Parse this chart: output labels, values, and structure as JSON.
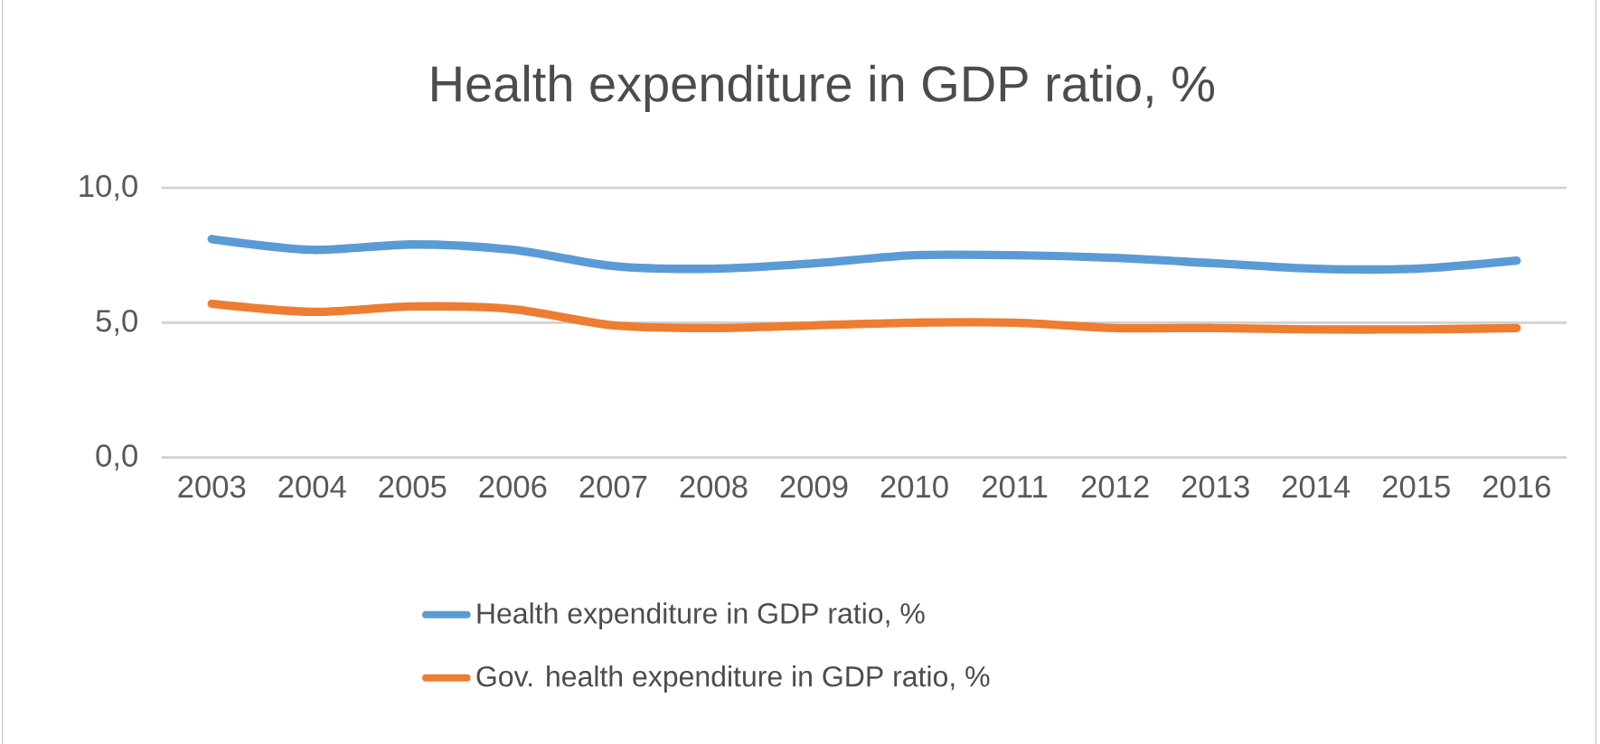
{
  "chart_data": {
    "type": "line",
    "title": "Health expenditure in GDP ratio, %",
    "categories": [
      "2003",
      "2004",
      "2005",
      "2006",
      "2007",
      "2008",
      "2009",
      "2010",
      "2011",
      "2012",
      "2013",
      "2014",
      "2015",
      "2016"
    ],
    "series": [
      {
        "name": "Health expenditure in GDP ratio, %",
        "color": "#5b9bd5",
        "values": [
          8.1,
          7.7,
          7.9,
          7.7,
          7.1,
          7.0,
          7.2,
          7.5,
          7.5,
          7.4,
          7.2,
          7.0,
          7.0,
          7.3
        ]
      },
      {
        "name": "Gov. health expenditure in GDP ratio, %",
        "color": "#ed7d31",
        "values": [
          5.7,
          5.4,
          5.6,
          5.5,
          4.9,
          4.8,
          4.9,
          5.0,
          5.0,
          4.8,
          4.8,
          4.75,
          4.75,
          4.8
        ]
      }
    ],
    "ylim": [
      0,
      10
    ],
    "yticks": [
      {
        "value": 0,
        "label": "0,0"
      },
      {
        "value": 5,
        "label": "5,0"
      },
      {
        "value": 10,
        "label": "10,0"
      }
    ],
    "grid": "y",
    "legend": "bottom",
    "marker": "none",
    "line_style": "solid"
  }
}
